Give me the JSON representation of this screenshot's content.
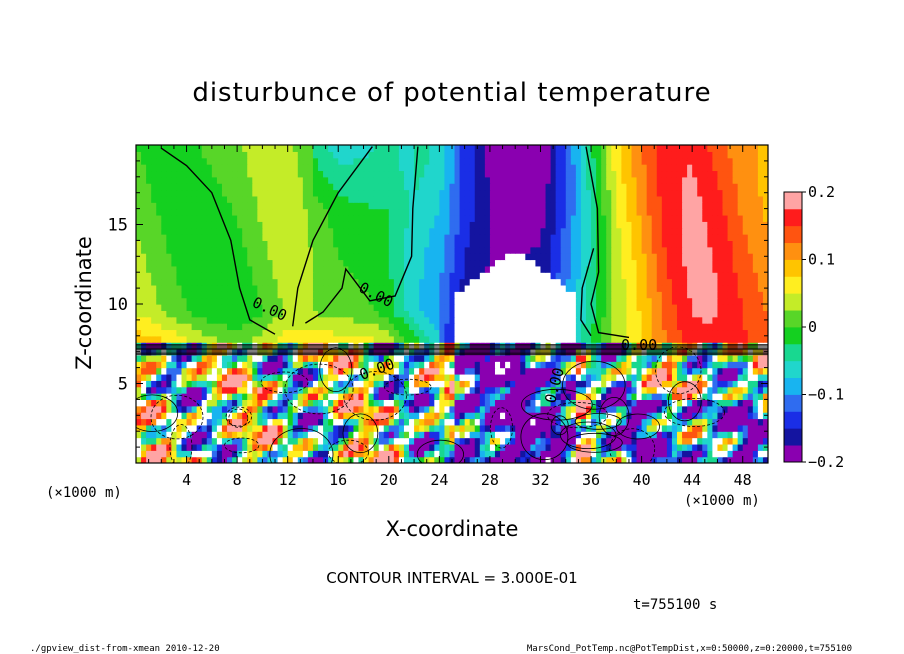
{
  "figure": {
    "title": "disturbunce of potential temperature",
    "contour_interval": "CONTOUR INTERVAL = 3.000E-01",
    "time_label": "t=755100 s",
    "footer_left": "./gpview_dist-from-xmean  2010-12-20",
    "footer_right": "MarsCond_PotTemp.nc@PotTempDist,x=0:50000,z=0:20000,t=755100"
  },
  "colors": {
    "palette": [
      "#8a00b0",
      "#1414a0",
      "#1a2ee6",
      "#2f6cf0",
      "#18b4f0",
      "#20d6cc",
      "#18d890",
      "#14d020",
      "#58d628",
      "#c4ec28",
      "#ffee20",
      "#ffc400",
      "#ff9010",
      "#ff5410",
      "#ff1c1c",
      "#ffa4a4"
    ],
    "contour": "#000000",
    "axis": "#000000"
  },
  "chart_data": {
    "type": "heatmap",
    "title": "disturbunce of potential temperature",
    "xlabel": "X-coordinate",
    "ylabel": "Z-coordinate",
    "x_unit_label": "(×1000 m)",
    "y_unit_label": "(×1000 m)",
    "xlim": [
      0,
      50
    ],
    "ylim": [
      0,
      20
    ],
    "x_ticks": [
      4,
      8,
      12,
      16,
      20,
      24,
      28,
      32,
      36,
      40,
      44,
      48
    ],
    "y_ticks": [
      5,
      10,
      15
    ],
    "colorbar": {
      "min": -0.2,
      "max": 0.2,
      "ticks": [
        "0.2",
        "0.1",
        "0",
        "−0.1",
        "−0.2"
      ],
      "tick_values": [
        0.2,
        0.1,
        0,
        -0.1,
        -0.2
      ]
    },
    "contour_labels": [
      "0.00",
      "0.00",
      "0.00",
      "0.00",
      "0.00"
    ],
    "upper_layer_profile": {
      "x": [
        0,
        4,
        8,
        10,
        12,
        14,
        16,
        18,
        20,
        22,
        24,
        26,
        28,
        30,
        32,
        34,
        36,
        38,
        40,
        42,
        44,
        46,
        48,
        50
      ],
      "value": [
        0.02,
        0.01,
        0.0,
        0.01,
        0.02,
        0.0,
        -0.01,
        0.0,
        0.0,
        -0.04,
        -0.08,
        -0.16,
        -0.2,
        -0.2,
        -0.18,
        -0.1,
        -0.02,
        0.06,
        0.1,
        0.14,
        0.16,
        0.15,
        0.13,
        0.12
      ]
    },
    "inversion_height": 7.5,
    "cold_core": {
      "x_range": [
        25,
        35
      ],
      "z_top": 13.5
    }
  }
}
